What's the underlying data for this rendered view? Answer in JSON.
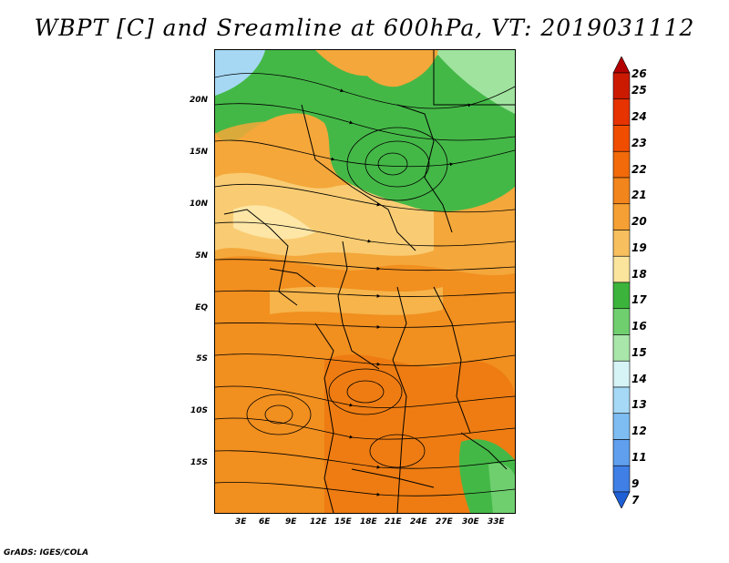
{
  "title": "WBPT [C] and Sreamline at 600hPa, VT: 2019031112",
  "footer": "GrADS: IGES/COLA",
  "map": {
    "lat_labels": [
      "20N",
      "15N",
      "10N",
      "5N",
      "EQ",
      "5S",
      "10S",
      "15S"
    ],
    "lon_labels": [
      "3E",
      "6E",
      "9E",
      "12E",
      "15E",
      "18E",
      "21E",
      "24E",
      "27E",
      "30E",
      "33E"
    ]
  },
  "colorbar": {
    "labels": [
      "26",
      "25",
      "24",
      "23",
      "22",
      "21",
      "20",
      "19",
      "18",
      "17",
      "16",
      "15",
      "14",
      "13",
      "12",
      "11",
      "9",
      "7"
    ],
    "colors": [
      "#b30000",
      "#cc1a00",
      "#e63300",
      "#f04d00",
      "#f26a0a",
      "#f2851c",
      "#f5a034",
      "#f7bf5e",
      "#fbe49c",
      "#3cb43c",
      "#6fcf6f",
      "#a9e6a9",
      "#d6f3f6",
      "#a6d9f6",
      "#7ebdf2",
      "#5f9fee",
      "#3f7fe6",
      "#1f5fd6"
    ]
  }
}
